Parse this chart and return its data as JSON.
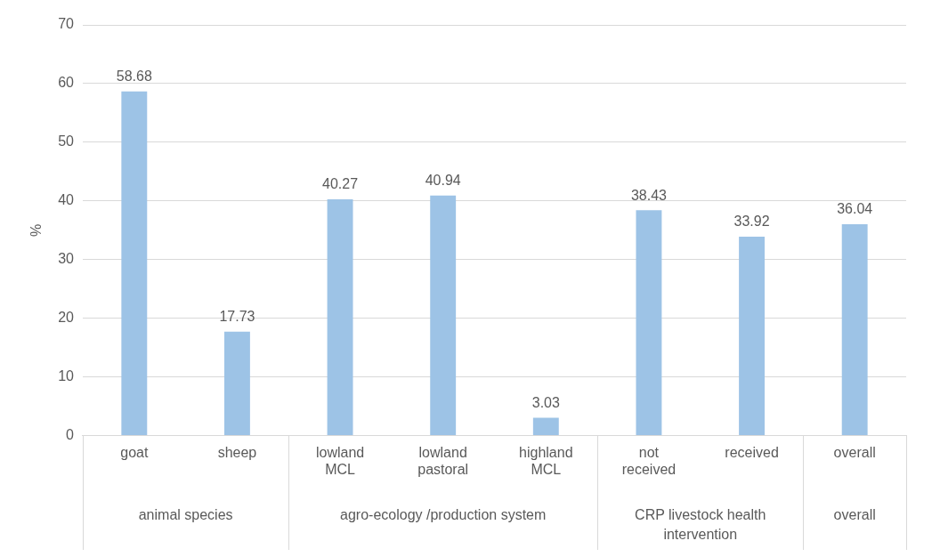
{
  "chart_data": {
    "type": "bar",
    "ylabel": "%",
    "categories": [
      "goat",
      "sheep",
      "lowland MCL",
      "lowland pastoral",
      "highland MCL",
      "not received",
      "received",
      "overall"
    ],
    "values": [
      58.68,
      17.73,
      40.27,
      40.94,
      3.03,
      38.43,
      33.92,
      36.04
    ],
    "color": "#9dc3e6",
    "ylim": [
      0,
      70
    ],
    "yticks": [
      0,
      10,
      20,
      30,
      40,
      50,
      60,
      70
    ],
    "grid": "y",
    "data_labels": true,
    "legend": false,
    "annotations": [
      "animal species",
      "agro-ecology /production system",
      "CRP livestock health intervention",
      "overall"
    ]
  }
}
